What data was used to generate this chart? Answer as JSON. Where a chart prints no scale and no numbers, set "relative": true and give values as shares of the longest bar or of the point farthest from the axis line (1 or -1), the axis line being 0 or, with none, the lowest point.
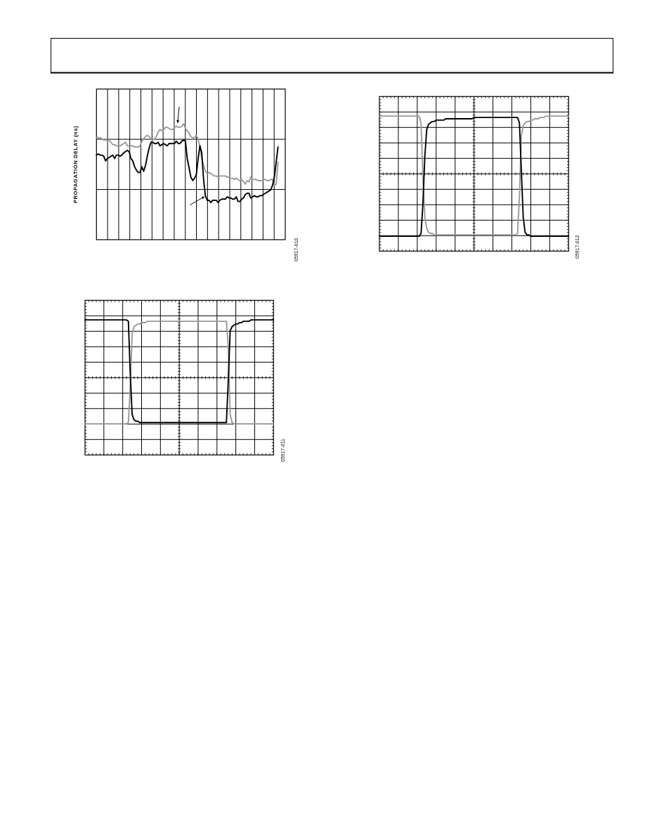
{
  "chart_data": [
    {
      "type": "line",
      "relative": true,
      "grid": true,
      "ylabel": "PROPAGATION DELAY (ns)",
      "annotations": [
        "05917-010"
      ],
      "categories": [
        null,
        null,
        null,
        null,
        null,
        null,
        null,
        null,
        null,
        null,
        null,
        null,
        null,
        null,
        null,
        null,
        null,
        null,
        null,
        null,
        null,
        null,
        null,
        null,
        null,
        null,
        null,
        null,
        null,
        null,
        null,
        null,
        null,
        null,
        null,
        null,
        null,
        null,
        null,
        null,
        null,
        null,
        null,
        null,
        null,
        null,
        null,
        null,
        null,
        null,
        null,
        null,
        null,
        null,
        null,
        null,
        null,
        null,
        null,
        null,
        null,
        null,
        null,
        null,
        null,
        null,
        null,
        null,
        null,
        null,
        null,
        null,
        null,
        null,
        null,
        null,
        null,
        null,
        null,
        null,
        null,
        null,
        null,
        null,
        null,
        null,
        null,
        null,
        null,
        null,
        null,
        null,
        null,
        null,
        null,
        null,
        null,
        null,
        null,
        null,
        null,
        null,
        null,
        null,
        null
      ],
      "series": [
        {
          "color": "#999999",
          "values": [
            0.88,
            0.88,
            0.88,
            0.87,
            0.86,
            0.86,
            0.86,
            0.86,
            0.84,
            0.82,
            0.82,
            0.81,
            0.81,
            0.81,
            0.82,
            0.83,
            0.84,
            0.81,
            0.81,
            0.81,
            0.81,
            0.8,
            0.8,
            0.8,
            0.81,
            0.85,
            0.87,
            0.89,
            0.9,
            0.89,
            0.87,
            0.86,
            0.87,
            0.89,
            0.93,
            0.95,
            0.94,
            0.95,
            0.97,
            0.97,
            0.96,
            0.95,
            0.95,
            0.97,
            0.98,
            0.97,
            0.97,
            0.98,
            1.0,
            0.96,
            0.94,
            0.92,
            0.89,
            0.88,
            0.88,
            0.9,
            0.87,
            0.8,
            0.7,
            0.64,
            0.59,
            0.57,
            0.58,
            0.57,
            0.56,
            0.55,
            0.55,
            0.54,
            0.55,
            0.55,
            0.55,
            0.55,
            0.54,
            0.54,
            0.53,
            0.53,
            0.52,
            0.53,
            0.52,
            0.51,
            0.52,
            0.5,
            0.48,
            0.51,
            0.5,
            0.54,
            0.52,
            0.52,
            0.52,
            0.51,
            0.51,
            0.51,
            0.52,
            0.52,
            0.51,
            0.51,
            0.52,
            0.52,
            0.47,
            0.48,
            0.67,
            null,
            null,
            null,
            null
          ]
        },
        {
          "color": "#000000",
          "values": [
            0.73,
            0.74,
            0.73,
            0.73,
            0.72,
            0.68,
            0.7,
            0.71,
            0.72,
            0.73,
            0.7,
            0.73,
            0.73,
            0.72,
            0.73,
            0.75,
            0.76,
            0.77,
            0.76,
            0.7,
            0.68,
            0.63,
            0.6,
            0.58,
            0.58,
            0.63,
            0.59,
            0.64,
            0.72,
            0.79,
            0.84,
            0.84,
            0.83,
            0.83,
            0.84,
            0.81,
            0.82,
            0.83,
            0.82,
            0.81,
            0.83,
            0.83,
            0.83,
            0.83,
            0.85,
            0.83,
            0.83,
            0.85,
            0.86,
            0.85,
            0.7,
            0.62,
            0.54,
            0.51,
            0.53,
            0.56,
            0.7,
            0.81,
            0.75,
            0.52,
            0.38,
            0.34,
            0.34,
            0.32,
            0.34,
            0.34,
            0.34,
            0.32,
            0.34,
            0.35,
            0.35,
            0.35,
            0.37,
            0.36,
            0.36,
            0.35,
            0.35,
            0.37,
            0.33,
            0.33,
            0.35,
            0.36,
            0.39,
            0.4,
            0.4,
            0.36,
            0.37,
            0.38,
            0.37,
            0.37,
            0.38,
            0.38,
            0.39,
            0.4,
            0.41,
            0.42,
            0.43,
            0.47,
            0.54,
            0.67,
            0.8,
            null,
            null,
            null,
            null
          ]
        }
      ]
    },
    {
      "type": "line",
      "relative": true,
      "grid": true,
      "annotations": [
        "05917-011"
      ],
      "categories": [
        null,
        null,
        null,
        null,
        null,
        null,
        null,
        null,
        null,
        null,
        null,
        null,
        null,
        null,
        null,
        null,
        null,
        null,
        null,
        null,
        null,
        null,
        null,
        null,
        null,
        null,
        null,
        null,
        null,
        null,
        null,
        null,
        null,
        null,
        null,
        null,
        null,
        null,
        null,
        null,
        null,
        null,
        null,
        null,
        null,
        null,
        null,
        null,
        null,
        null,
        null,
        null,
        null,
        null,
        null,
        null,
        null,
        null,
        null,
        null,
        null,
        null,
        null,
        null,
        null,
        null,
        null,
        null,
        null,
        null,
        null,
        null,
        null,
        null,
        null,
        null,
        null,
        null,
        null,
        null,
        null,
        null,
        null,
        null,
        null,
        null,
        null,
        null,
        null,
        null,
        null,
        null,
        null,
        null,
        null,
        null,
        null,
        null,
        null,
        null,
        null
      ],
      "series": [
        {
          "color": "#999999",
          "values": [
            0.23,
            0.23,
            0.23,
            0.23,
            0.23,
            0.23,
            0.23,
            0.23,
            0.23,
            0.23,
            0.23,
            0.23,
            0.23,
            0.23,
            0.23,
            0.23,
            0.23,
            0.23,
            0.23,
            0.23,
            0.23,
            0.23,
            0.23,
            0.24,
            0.5,
            0.9,
            0.95,
            0.96,
            0.97,
            0.97,
            0.98,
            0.98,
            0.98,
            0.99,
            0.99,
            0.99,
            0.99,
            0.99,
            0.99,
            0.99,
            0.99,
            0.99,
            0.99,
            0.99,
            0.99,
            0.99,
            0.99,
            0.99,
            0.99,
            0.99,
            0.99,
            0.99,
            0.99,
            0.99,
            0.99,
            0.99,
            0.99,
            0.99,
            0.99,
            0.99,
            0.99,
            0.99,
            0.99,
            0.99,
            0.99,
            0.99,
            0.99,
            0.99,
            0.99,
            0.99,
            0.99,
            0.99,
            0.99,
            0.99,
            0.99,
            0.99,
            0.8,
            0.3,
            0.24,
            0.23,
            0.23,
            0.23,
            0.23,
            0.23,
            0.23,
            0.23,
            0.23,
            0.23,
            0.23,
            0.23,
            0.23,
            0.23,
            0.23,
            0.23,
            0.23,
            0.23,
            0.23,
            0.23,
            0.23,
            0.23,
            0.23
          ]
        },
        {
          "color": "#000000",
          "values": [
            1,
            1,
            1,
            1,
            1,
            1,
            1,
            1,
            1,
            1,
            1,
            1,
            1,
            1,
            1,
            1,
            1,
            1,
            1,
            1,
            1,
            1,
            1,
            0.99,
            0.6,
            0.3,
            0.26,
            0.25,
            0.25,
            0.24,
            0.24,
            0.24,
            0.24,
            0.24,
            0.24,
            0.24,
            0.24,
            0.24,
            0.24,
            0.24,
            0.24,
            0.24,
            0.24,
            0.24,
            0.24,
            0.24,
            0.24,
            0.24,
            0.24,
            0.24,
            0.24,
            0.24,
            0.24,
            0.24,
            0.24,
            0.24,
            0.24,
            0.24,
            0.24,
            0.24,
            0.24,
            0.24,
            0.24,
            0.24,
            0.24,
            0.24,
            0.24,
            0.24,
            0.24,
            0.24,
            0.24,
            0.24,
            0.24,
            0.24,
            0.24,
            0.24,
            0.55,
            0.92,
            0.95,
            0.96,
            0.97,
            0.97,
            0.98,
            0.98,
            0.99,
            0.99,
            0.99,
            0.99,
            1,
            1,
            1,
            1,
            1,
            1,
            1,
            1,
            1,
            1,
            1,
            1,
            1
          ]
        }
      ]
    },
    {
      "type": "line",
      "relative": true,
      "grid": true,
      "annotations": [
        "05917-012"
      ],
      "categories": [
        null,
        null,
        null,
        null,
        null,
        null,
        null,
        null,
        null,
        null,
        null,
        null,
        null,
        null,
        null,
        null,
        null,
        null,
        null,
        null,
        null,
        null,
        null,
        null,
        null,
        null,
        null,
        null,
        null,
        null,
        null,
        null,
        null,
        null,
        null,
        null,
        null,
        null,
        null,
        null,
        null,
        null,
        null,
        null,
        null,
        null,
        null,
        null,
        null,
        null,
        null,
        null,
        null,
        null,
        null,
        null,
        null,
        null,
        null,
        null,
        null,
        null,
        null,
        null,
        null,
        null,
        null,
        null,
        null,
        null,
        null,
        null,
        null,
        null,
        null,
        null,
        null,
        null,
        null,
        null,
        null,
        null,
        null,
        null,
        null,
        null,
        null,
        null,
        null,
        null,
        null,
        null,
        null,
        null,
        null,
        null,
        null,
        null,
        null,
        null,
        null
      ],
      "series": [
        {
          "color": "#999999",
          "values": [
            1,
            1,
            1,
            1,
            1,
            1,
            1,
            1,
            1,
            1,
            1,
            1,
            1,
            1,
            1,
            1,
            1,
            1,
            1,
            1,
            1,
            1,
            0.95,
            0.55,
            0.25,
            0.17,
            0.14,
            0.13,
            0.13,
            0.12,
            0.12,
            0.12,
            0.12,
            0.12,
            0.12,
            0.12,
            0.12,
            0.12,
            0.12,
            0.12,
            0.12,
            0.12,
            0.12,
            0.12,
            0.12,
            0.12,
            0.12,
            0.12,
            0.12,
            0.12,
            0.12,
            0.12,
            0.12,
            0.12,
            0.12,
            0.12,
            0.12,
            0.12,
            0.12,
            0.12,
            0.12,
            0.12,
            0.12,
            0.12,
            0.12,
            0.12,
            0.12,
            0.12,
            0.12,
            0.12,
            0.12,
            0.12,
            0.12,
            0.13,
            0.4,
            0.85,
            0.93,
            0.95,
            0.96,
            0.96,
            0.97,
            0.97,
            0.98,
            0.98,
            0.98,
            0.99,
            0.99,
            0.99,
            1,
            1,
            1,
            1,
            1,
            1,
            1,
            1,
            1,
            1,
            1,
            1,
            1
          ]
        },
        {
          "color": "#000000",
          "values": [
            0.11,
            0.11,
            0.11,
            0.11,
            0.11,
            0.11,
            0.11,
            0.11,
            0.11,
            0.11,
            0.11,
            0.11,
            0.11,
            0.11,
            0.11,
            0.11,
            0.11,
            0.11,
            0.11,
            0.11,
            0.11,
            0.11,
            0.13,
            0.35,
            0.7,
            0.9,
            0.94,
            0.95,
            0.96,
            0.96,
            0.97,
            0.97,
            0.97,
            0.97,
            0.97,
            0.98,
            0.98,
            0.98,
            0.98,
            0.98,
            0.98,
            0.98,
            0.98,
            0.98,
            0.98,
            0.98,
            0.98,
            0.98,
            0.98,
            0.98,
            0.99,
            0.99,
            0.99,
            0.99,
            0.99,
            0.99,
            0.99,
            0.99,
            0.99,
            0.99,
            0.99,
            0.99,
            0.99,
            0.99,
            0.99,
            0.99,
            0.99,
            0.99,
            0.99,
            0.99,
            0.99,
            0.99,
            0.99,
            0.99,
            0.95,
            0.6,
            0.25,
            0.14,
            0.12,
            0.12,
            0.11,
            0.11,
            0.11,
            0.11,
            0.11,
            0.11,
            0.11,
            0.11,
            0.11,
            0.11,
            0.11,
            0.11,
            0.11,
            0.11,
            0.11,
            0.11,
            0.11,
            0.11,
            0.11,
            0.11,
            0.11
          ]
        }
      ]
    }
  ]
}
